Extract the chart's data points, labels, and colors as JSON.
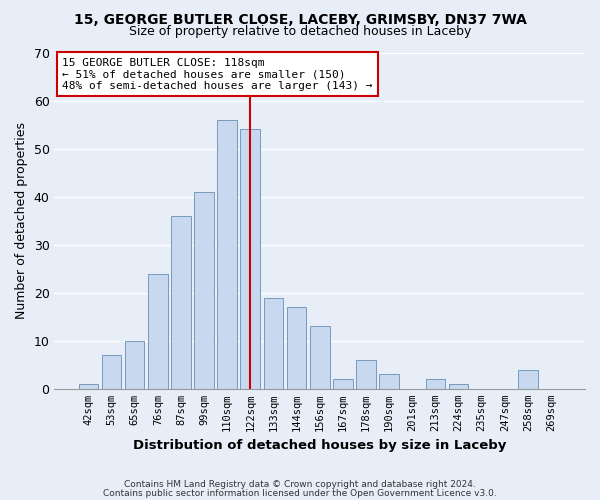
{
  "title": "15, GEORGE BUTLER CLOSE, LACEBY, GRIMSBY, DN37 7WA",
  "subtitle": "Size of property relative to detached houses in Laceby",
  "xlabel": "Distribution of detached houses by size in Laceby",
  "ylabel": "Number of detached properties",
  "bar_labels": [
    "42sqm",
    "53sqm",
    "65sqm",
    "76sqm",
    "87sqm",
    "99sqm",
    "110sqm",
    "122sqm",
    "133sqm",
    "144sqm",
    "156sqm",
    "167sqm",
    "178sqm",
    "190sqm",
    "201sqm",
    "213sqm",
    "224sqm",
    "235sqm",
    "247sqm",
    "258sqm",
    "269sqm"
  ],
  "bar_values": [
    1,
    7,
    10,
    24,
    36,
    41,
    56,
    54,
    19,
    17,
    13,
    2,
    6,
    3,
    0,
    2,
    1,
    0,
    0,
    4,
    0
  ],
  "bar_color": "#c8d8ee",
  "bar_edge_color": "#7799bb",
  "vline_x": 7.0,
  "vline_color": "#cc0000",
  "annotation_line1": "15 GEORGE BUTLER CLOSE: 118sqm",
  "annotation_line2": "← 51% of detached houses are smaller (150)",
  "annotation_line3": "48% of semi-detached houses are larger (143) →",
  "annotation_box_color": "#ffffff",
  "annotation_box_edge": "#cc0000",
  "ylim": [
    0,
    70
  ],
  "yticks": [
    0,
    10,
    20,
    30,
    40,
    50,
    60,
    70
  ],
  "footer1": "Contains HM Land Registry data © Crown copyright and database right 2024.",
  "footer2": "Contains public sector information licensed under the Open Government Licence v3.0.",
  "bg_color": "#e8eef8",
  "plot_bg_color": "#e8eef8"
}
